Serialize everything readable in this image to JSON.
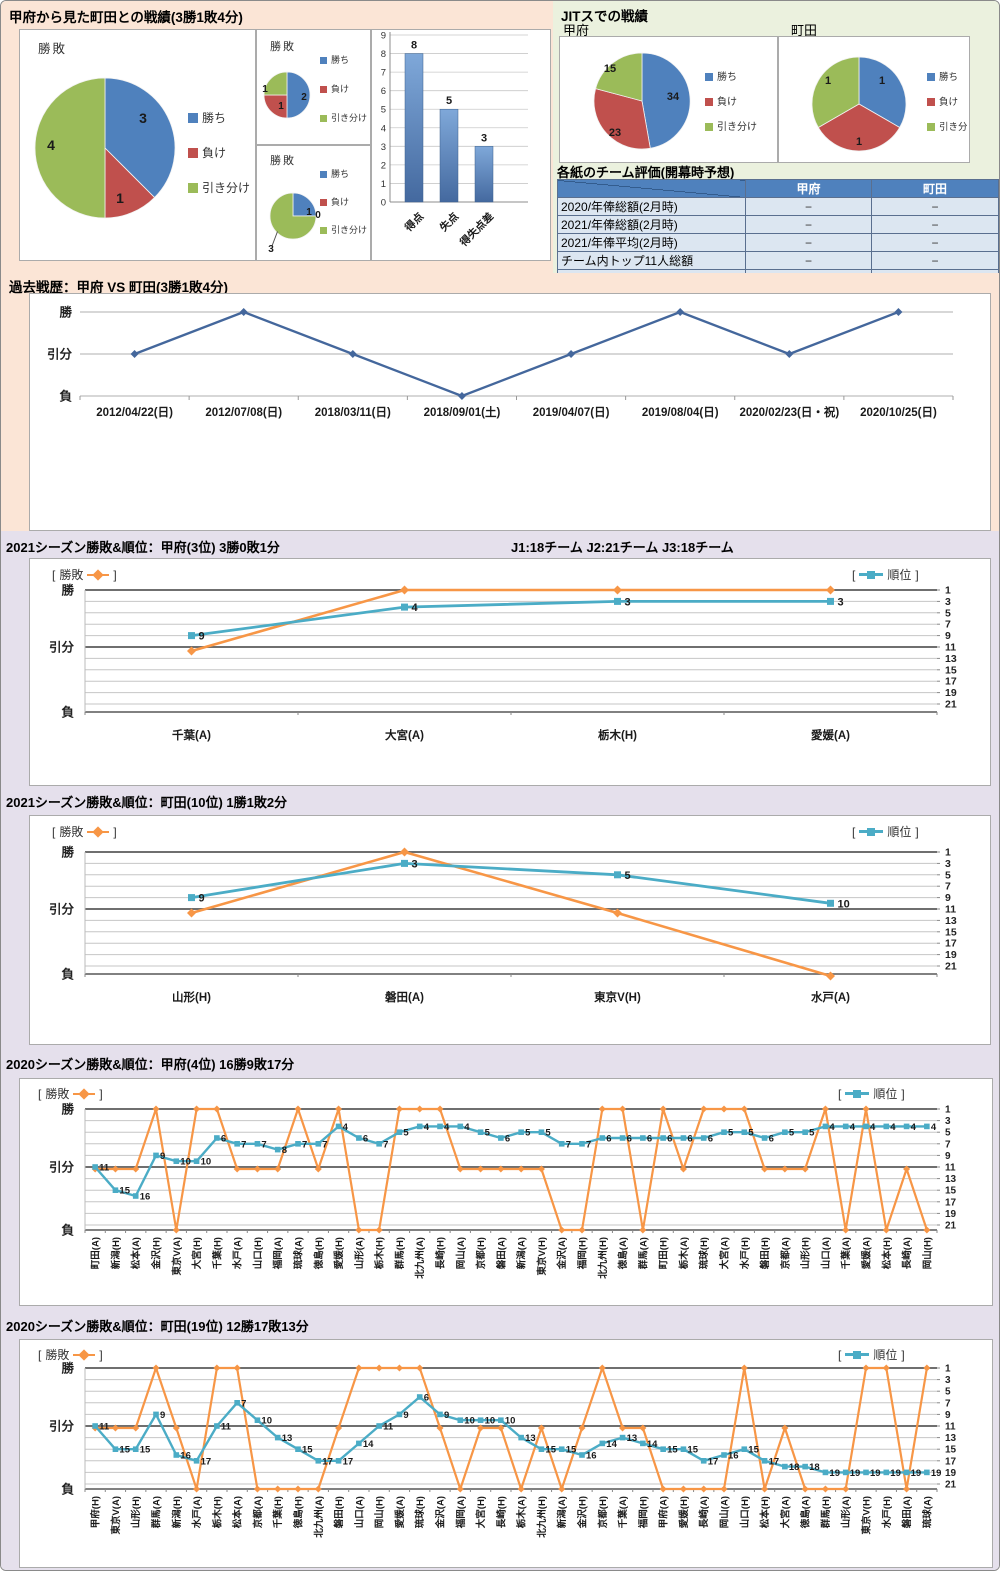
{
  "colors": {
    "pie": [
      "#4F81BD",
      "#C0504D",
      "#9BBB59"
    ],
    "wdl_line": "#F79646",
    "rank_line": "#4BACC6",
    "history_line": "#44679C",
    "bar_top": "#7FA8D9",
    "bar_bottom": "#44699F",
    "table_header_bg": "#4F81BD",
    "table_row_bg": "#DCE6F1"
  },
  "labels": {
    "pie_title": "勝敗",
    "legend_items": [
      "勝ち",
      "負け",
      "引き分け"
    ],
    "axis_wdl": [
      "勝",
      "引分",
      "負"
    ],
    "bracket_l": "[",
    "bracket_r": "]",
    "wdl": "勝敗",
    "rank": "順位",
    "rank_ticks": [
      1,
      3,
      5,
      7,
      9,
      11,
      13,
      15,
      17,
      19,
      21
    ]
  },
  "top_left": {
    "title": "甲府から見た町田との戦績(3勝1敗4分)"
  },
  "top_right": {
    "title": "JITスでの戦績",
    "team_left": "甲府",
    "team_right": "町田",
    "table": {
      "title": "各紙のチーム評価(開幕時予想)",
      "col_headers": [
        "甲府",
        "町田"
      ],
      "rows": [
        {
          "label": "2020/年俸総額(2月時)",
          "values": [
            "−",
            "−"
          ]
        },
        {
          "label": "2021/年俸総額(2月時)",
          "values": [
            "−",
            "−"
          ]
        },
        {
          "label": "2021/年俸平均(2月時)",
          "values": [
            "−",
            "−"
          ]
        },
        {
          "label": "チーム内トップ11人総額",
          "values": [
            "−",
            "−"
          ]
        }
      ]
    }
  },
  "history": {
    "title": "過去戦歴：甲府 VS 町田(3勝1敗4分)"
  },
  "s2021_kofu": {
    "header": "2021シーズン勝敗&順位：甲府(3位) 3勝0敗1分",
    "header_right": "J1:18チーム  J2:21チーム  J3:18チーム"
  },
  "s2021_machida": {
    "header": "2021シーズン勝敗&順位：町田(10位) 1勝1敗2分"
  },
  "s2020_kofu": {
    "header": "2020シーズン勝敗&順位：甲府(4位) 16勝9敗17分"
  },
  "s2020_machida": {
    "header": "2020シーズン勝敗&順位：町田(19位) 12勝17敗13分"
  },
  "chart_data": [
    {
      "id": "h2h-pie-main",
      "type": "pie",
      "title": "勝敗",
      "labels": [
        "勝ち",
        "負け",
        "引き分け"
      ],
      "values": [
        3,
        1,
        4
      ]
    },
    {
      "id": "h2h-pie-sub1",
      "type": "pie",
      "title": "勝敗",
      "labels": [
        "勝ち",
        "負け",
        "引き分け"
      ],
      "values": [
        2,
        1,
        1
      ]
    },
    {
      "id": "h2h-pie-sub2",
      "type": "pie",
      "title": "勝敗",
      "labels": [
        "勝ち",
        "負け",
        "引き分け"
      ],
      "values": [
        1,
        0,
        3
      ]
    },
    {
      "id": "h2h-bar",
      "type": "bar",
      "categories": [
        "得点",
        "失点",
        "得失点差"
      ],
      "values": [
        8,
        5,
        3
      ],
      "ylim": [
        0,
        9
      ],
      "ytick_step": 1
    },
    {
      "id": "jit-pie-kofu",
      "type": "pie",
      "labels": [
        "勝ち",
        "負け",
        "引き分け"
      ],
      "values": [
        34,
        23,
        15
      ]
    },
    {
      "id": "jit-pie-machida",
      "type": "pie",
      "labels": [
        "勝ち",
        "負け",
        "引き分け"
      ],
      "values": [
        1,
        1,
        1
      ]
    },
    {
      "id": "history-line",
      "type": "line",
      "categories": [
        "2012/04/22(日)",
        "2012/07/08(日)",
        "2018/03/11(日)",
        "2018/09/01(土)",
        "2019/04/07(日)",
        "2019/08/04(日)",
        "2020/02/23(日・祝)",
        "2020/10/25(日)"
      ],
      "series": [
        {
          "name": "勝敗",
          "results": [
            "引分",
            "勝",
            "引分",
            "負",
            "引分",
            "勝",
            "引分",
            "勝"
          ]
        }
      ],
      "yticks": [
        "勝",
        "引分",
        "負"
      ]
    },
    {
      "id": "kofu-2021",
      "type": "line",
      "categories": [
        "千葉(A)",
        "大宮(A)",
        "栃木(H)",
        "愛媛(A)"
      ],
      "series": [
        {
          "name": "勝敗",
          "results": [
            "引分",
            "勝",
            "勝",
            "勝"
          ]
        },
        {
          "name": "順位",
          "values": [
            9,
            4,
            3,
            3
          ]
        }
      ],
      "rank_axis": [
        1,
        21
      ]
    },
    {
      "id": "machida-2021",
      "type": "line",
      "categories": [
        "山形(H)",
        "磐田(A)",
        "東京V(H)",
        "水戸(A)"
      ],
      "series": [
        {
          "name": "勝敗",
          "results": [
            "引分",
            "勝",
            "引分",
            "負"
          ]
        },
        {
          "name": "順位",
          "values": [
            9,
            3,
            5,
            10
          ]
        }
      ],
      "rank_axis": [
        1,
        21
      ]
    },
    {
      "id": "kofu-2020",
      "type": "line",
      "categories": [
        "町田(A)",
        "新潟(H)",
        "松本(A)",
        "金沢(H)",
        "東京V(A)",
        "大宮(H)",
        "千葉(H)",
        "水戸(A)",
        "山口(H)",
        "福岡(A)",
        "琉球(A)",
        "徳島(H)",
        "愛媛(H)",
        "山形(A)",
        "栃木(H)",
        "群馬(H)",
        "北九州(A)",
        "長崎(H)",
        "岡山(A)",
        "京都(H)",
        "磐田(A)",
        "新潟(A)",
        "東京V(H)",
        "金沢(A)",
        "福岡(H)",
        "北九州(H)",
        "徳島(A)",
        "群馬(A)",
        "町田(H)",
        "栃木(A)",
        "琉球(H)",
        "大宮(A)",
        "水戸(H)",
        "磐田(H)",
        "京都(A)",
        "山形(H)",
        "山口(A)",
        "千葉(A)",
        "愛媛(A)",
        "松本(H)",
        "長崎(A)",
        "岡山(H)"
      ],
      "series": [
        {
          "name": "勝敗",
          "results": [
            "引分",
            "引分",
            "引分",
            "勝",
            "負",
            "勝",
            "勝",
            "引分",
            "引分",
            "引分",
            "勝",
            "引分",
            "勝",
            "負",
            "負",
            "勝",
            "勝",
            "勝",
            "引分",
            "引分",
            "引分",
            "引分",
            "引分",
            "負",
            "負",
            "勝",
            "勝",
            "負",
            "勝",
            "引分",
            "勝",
            "勝",
            "勝",
            "引分",
            "引分",
            "引分",
            "勝",
            "負",
            "勝",
            "負",
            "引分",
            "負"
          ]
        },
        {
          "name": "順位",
          "values": [
            11,
            15,
            16,
            9,
            10,
            10,
            6,
            7,
            7,
            8,
            7,
            7,
            4,
            6,
            7,
            5,
            4,
            4,
            4,
            5,
            6,
            5,
            5,
            7,
            7,
            6,
            6,
            6,
            6,
            6,
            6,
            5,
            5,
            6,
            5,
            5,
            4,
            4,
            4,
            4,
            4,
            4
          ]
        }
      ],
      "rank_axis": [
        1,
        21
      ]
    },
    {
      "id": "machida-2020",
      "type": "line",
      "categories": [
        "甲府(H)",
        "東京V(A)",
        "山形(H)",
        "群馬(A)",
        "新潟(H)",
        "水戸(A)",
        "栃木(H)",
        "松本(A)",
        "京都(A)",
        "千葉(H)",
        "徳島(H)",
        "北九州(A)",
        "磐田(H)",
        "山口(A)",
        "岡山(H)",
        "愛媛(A)",
        "琉球(H)",
        "金沢(A)",
        "福岡(A)",
        "大宮(H)",
        "長崎(H)",
        "栃木(A)",
        "北九州(H)",
        "新潟(A)",
        "金沢(H)",
        "京都(H)",
        "千葉(A)",
        "福岡(H)",
        "甲府(A)",
        "愛媛(H)",
        "長崎(A)",
        "岡山(A)",
        "山口(H)",
        "松本(H)",
        "大宮(A)",
        "徳島(A)",
        "群馬(H)",
        "山形(A)",
        "東京V(H)",
        "水戸(H)",
        "磐田(A)",
        "琉球(A)"
      ],
      "series": [
        {
          "name": "勝敗",
          "results": [
            "引分",
            "引分",
            "引分",
            "勝",
            "引分",
            "負",
            "勝",
            "勝",
            "負",
            "負",
            "負",
            "負",
            "引分",
            "勝",
            "勝",
            "勝",
            "勝",
            "引分",
            "負",
            "引分",
            "引分",
            "負",
            "引分",
            "負",
            "引分",
            "勝",
            "引分",
            "引分",
            "負",
            "負",
            "負",
            "負",
            "勝",
            "負",
            "引分",
            "負",
            "負",
            "負",
            "勝",
            "勝",
            "負",
            "勝"
          ]
        },
        {
          "name": "順位",
          "values": [
            11,
            15,
            15,
            9,
            16,
            17,
            11,
            7,
            10,
            13,
            15,
            17,
            17,
            14,
            11,
            9,
            6,
            9,
            10,
            10,
            10,
            13,
            15,
            15,
            16,
            14,
            13,
            14,
            15,
            15,
            17,
            16,
            15,
            17,
            18,
            18,
            19,
            19,
            19,
            19,
            19,
            19
          ]
        }
      ],
      "rank_axis": [
        1,
        21
      ]
    }
  ]
}
